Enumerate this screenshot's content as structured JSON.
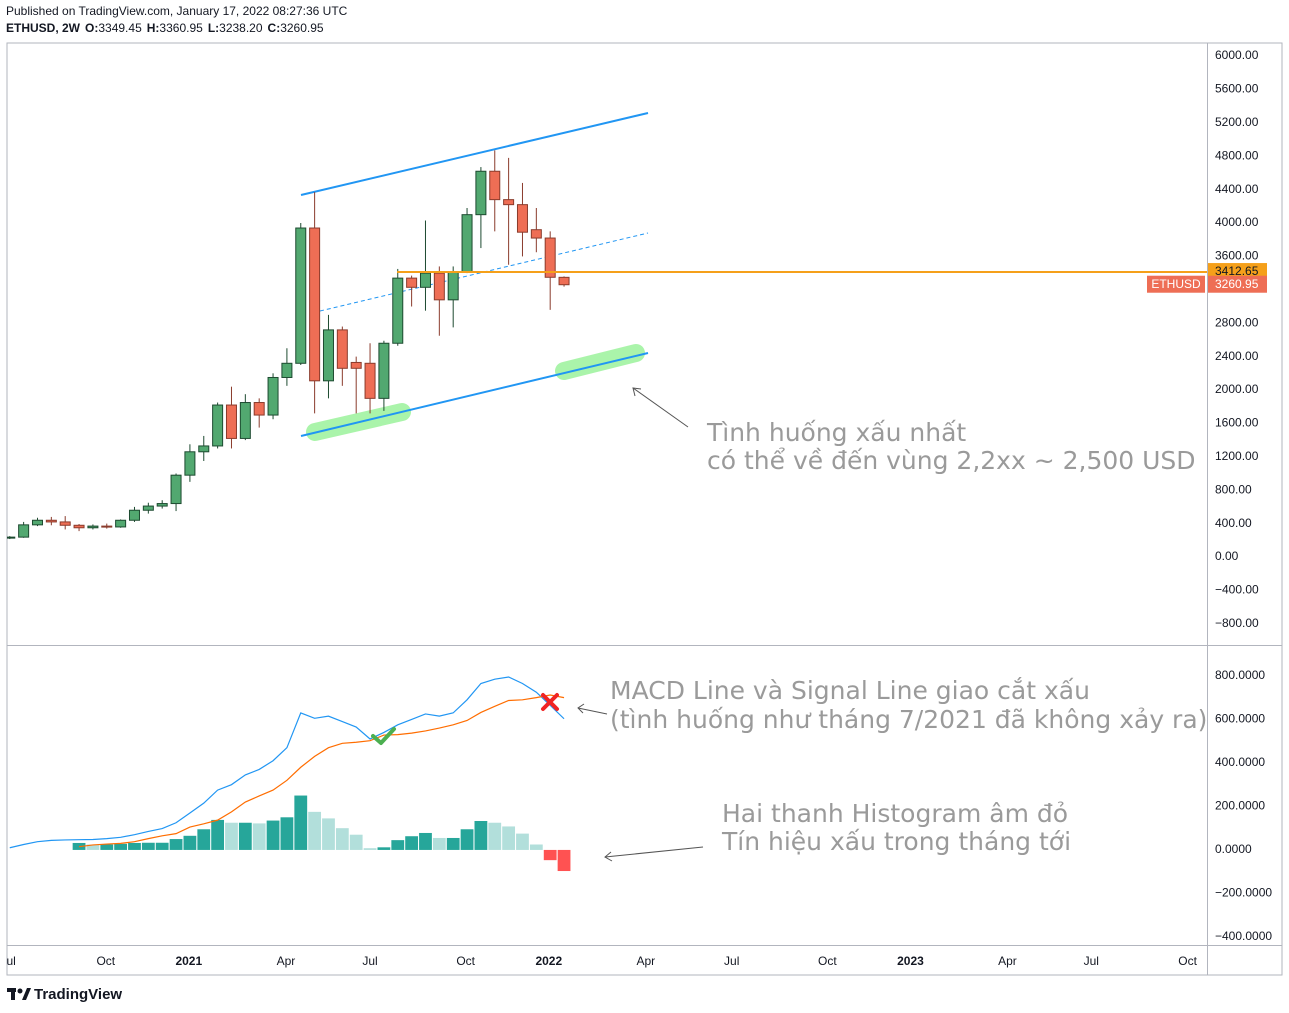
{
  "published": "Published on TradingView.com, January 17, 2022 08:27:36 UTC",
  "footer": "TradingView",
  "chart_data": [
    {
      "type": "candlestick",
      "name": "ETHUSD",
      "title": "ETHUSD, 2W",
      "ohlc_header": [
        {
          "name": "O:",
          "label": "3349.45"
        },
        {
          "name": "H:",
          "label": "3360.95"
        },
        {
          "name": "L:",
          "label": "3238.20"
        },
        {
          "name": "C:",
          "label": "3260.95"
        }
      ],
      "open": [
        228,
        238,
        385,
        440,
        420,
        380,
        350,
        370,
        360,
        440,
        560,
        610,
        640,
        980,
        1260,
        1330,
        1820,
        1420,
        1850,
        1700,
        2150,
        2320,
        3940,
        2110,
        2720,
        2330,
        2320,
        1900,
        2560,
        3340,
        3230,
        3400,
        3080,
        3410,
        4100,
        4620,
        4280,
        4220,
        3920,
        3820,
        3349.45
      ],
      "high": [
        250,
        420,
        470,
        480,
        490,
        395,
        390,
        400,
        450,
        600,
        650,
        680,
        1000,
        1350,
        1450,
        1850,
        2040,
        1950,
        1900,
        2200,
        2500,
        4000,
        4370,
        2900,
        2760,
        2400,
        2560,
        2590,
        3450,
        3370,
        4030,
        3480,
        3480,
        4180,
        4670,
        4870,
        4780,
        4480,
        4180,
        3900,
        3360.95
      ],
      "low": [
        215,
        230,
        370,
        380,
        330,
        310,
        330,
        340,
        350,
        420,
        520,
        580,
        550,
        900,
        1150,
        1300,
        1300,
        1400,
        1550,
        1650,
        2050,
        2300,
        1720,
        1900,
        2050,
        1720,
        1720,
        1750,
        2530,
        3000,
        2950,
        2650,
        2750,
        3400,
        3700,
        3900,
        3500,
        3600,
        3650,
        2960,
        3238.2
      ],
      "close": [
        238,
        385,
        440,
        420,
        380,
        350,
        370,
        360,
        440,
        560,
        610,
        640,
        980,
        1260,
        1330,
        1820,
        1420,
        1850,
        1700,
        2150,
        2320,
        3940,
        2110,
        2720,
        2260,
        2260,
        1900,
        2560,
        3340,
        3230,
        3400,
        3080,
        3410,
        4100,
        4620,
        4280,
        4220,
        3890,
        3820,
        3350,
        3260.95
      ],
      "up_color": "#52a870",
      "up_border": "#1d4a30",
      "down_color": "#ee6e55",
      "down_border": "#8a3b2c",
      "ylim": [
        -1054,
        6156
      ],
      "yticks": [
        {
          "value": 6000,
          "label": "6000.00"
        },
        {
          "value": 5600,
          "label": "5600.00"
        },
        {
          "value": 5200,
          "label": "5200.00"
        },
        {
          "value": 4800,
          "label": "4800.00"
        },
        {
          "value": 4400,
          "label": "4400.00"
        },
        {
          "value": 4000,
          "label": "4000.00"
        },
        {
          "value": 3600,
          "label": "3600.00"
        },
        {
          "value": 2800,
          "label": "2800.00"
        },
        {
          "value": 2400,
          "label": "2400.00"
        },
        {
          "value": 2000,
          "label": "2000.00"
        },
        {
          "value": 1600,
          "label": "1600.00"
        },
        {
          "value": 1200,
          "label": "1200.00"
        },
        {
          "value": 800,
          "label": "800.00"
        },
        {
          "value": 400,
          "label": "400.00"
        },
        {
          "value": 0,
          "label": "0.00"
        },
        {
          "value": -400,
          "label": "−400.00"
        },
        {
          "value": -800,
          "label": "−800.00"
        }
      ],
      "price_line": {
        "value": 3412.65,
        "color": "#f5a01a"
      },
      "annotations": [
        "Tình huống xấu nhất",
        "có thể về đến vùng 2,2xx ~ 2,500 USD"
      ],
      "grid": false
    },
    {
      "type": "macd",
      "macd": {
        "color": "#2196f3",
        "values": [
          10,
          25,
          38,
          44,
          46,
          47,
          48,
          52,
          58,
          70,
          85,
          98,
          125,
          170,
          215,
          275,
          300,
          345,
          370,
          410,
          470,
          630,
          605,
          615,
          590,
          565,
          510,
          540,
          575,
          600,
          625,
          615,
          630,
          690,
          765,
          785,
          795,
          765,
          725,
          665,
          603
        ]
      },
      "signal": {
        "color": "#ff6d00",
        "values": [
          null,
          null,
          null,
          null,
          null,
          15,
          23,
          27,
          30,
          38,
          52,
          65,
          75,
          105,
          120,
          137,
          175,
          220,
          248,
          275,
          320,
          380,
          430,
          470,
          490,
          495,
          502,
          528,
          530,
          537,
          547,
          560,
          575,
          595,
          632,
          660,
          687,
          690,
          700,
          712,
          700
        ]
      },
      "histogram": {
        "colors": {
          "rising_positive": "#26a69a",
          "falling_positive": "#b2dfdb",
          "falling_negative": "#ff5252",
          "rising_negative": "#ffcdd2"
        },
        "values": [
          null,
          null,
          null,
          null,
          null,
          32,
          25,
          25,
          28,
          32,
          33,
          33,
          50,
          65,
          95,
          138,
          125,
          125,
          122,
          135,
          150,
          250,
          175,
          145,
          100,
          70,
          8,
          12,
          45,
          63,
          78,
          55,
          55,
          95,
          133,
          125,
          108,
          75,
          25,
          -47,
          -97
        ]
      },
      "ylim": [
        -437,
        942
      ],
      "yticks": [
        {
          "value": 800,
          "label": "800.0000"
        },
        {
          "value": 600,
          "label": "600.0000"
        },
        {
          "value": 400,
          "label": "400.0000"
        },
        {
          "value": 200,
          "label": "200.0000"
        },
        {
          "value": 0,
          "label": "0.0000"
        },
        {
          "value": -200,
          "label": "−200.0000"
        },
        {
          "value": -400,
          "label": "−400.0000"
        }
      ],
      "xlim": [
        -0.2,
        86.4
      ],
      "xticks": [
        {
          "value": 0.1,
          "label": "ul"
        },
        {
          "value": 6.93,
          "label": "Oct"
        },
        {
          "value": 12.92,
          "label": "2021"
        },
        {
          "value": 19.93,
          "label": "Apr"
        },
        {
          "value": 26.0,
          "label": "Jul"
        },
        {
          "value": 32.9,
          "label": "Oct"
        },
        {
          "value": 38.9,
          "label": "2022"
        },
        {
          "value": 45.9,
          "label": "Apr"
        },
        {
          "value": 52.1,
          "label": "Jul"
        },
        {
          "value": 59.0,
          "label": "Oct"
        },
        {
          "value": 65.0,
          "label": "2023"
        },
        {
          "value": 72.0,
          "label": "Apr"
        },
        {
          "value": 78.05,
          "label": "Jul"
        },
        {
          "value": 85.0,
          "label": "Oct"
        }
      ],
      "annotations": [
        "MACD Line và Signal Line giao cắt xấu",
        "(tình huống như tháng 7/2021 đã không xảy ra)",
        "Hai thanh Histogram âm đỏ",
        "Tín hiệu xấu trong tháng tới"
      ],
      "grid": false
    }
  ]
}
